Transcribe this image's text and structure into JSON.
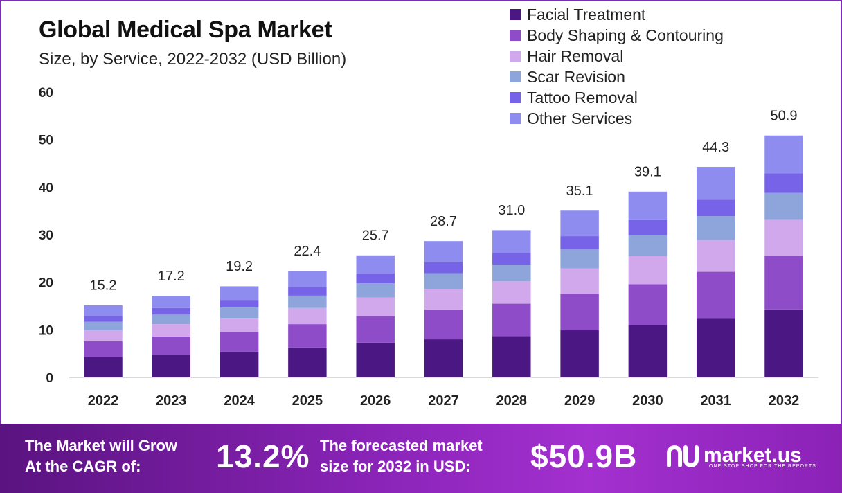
{
  "title": "Global Medical Spa Market",
  "subtitle": "Size, by Service, 2022-2032 (USD Billion)",
  "chart_data": {
    "type": "bar",
    "stacked": true,
    "categories": [
      "2022",
      "2023",
      "2024",
      "2025",
      "2026",
      "2027",
      "2028",
      "2029",
      "2030",
      "2031",
      "2032"
    ],
    "totals": [
      "15.2",
      "17.2",
      "19.2",
      "22.4",
      "25.7",
      "28.7",
      "31.0",
      "35.1",
      "39.1",
      "44.3",
      "50.9"
    ],
    "series": [
      {
        "name": "Facial Treatment",
        "color": "#4b1782",
        "values": [
          4.3,
          4.8,
          5.4,
          6.3,
          7.3,
          8.0,
          8.7,
          9.9,
          11.0,
          12.5,
          14.3
        ]
      },
      {
        "name": "Body Shaping & Contouring",
        "color": "#8e4cc8",
        "values": [
          3.3,
          3.8,
          4.2,
          4.9,
          5.6,
          6.3,
          6.8,
          7.7,
          8.6,
          9.7,
          11.2
        ]
      },
      {
        "name": "Hair Removal",
        "color": "#d2a8ec",
        "values": [
          2.3,
          2.6,
          2.9,
          3.4,
          3.9,
          4.3,
          4.7,
          5.3,
          5.9,
          6.7,
          7.6
        ]
      },
      {
        "name": "Scar Revision",
        "color": "#8ea5db",
        "values": [
          1.8,
          2.0,
          2.2,
          2.6,
          3.0,
          3.3,
          3.5,
          4.0,
          4.4,
          5.0,
          5.7
        ]
      },
      {
        "name": "Tattoo Removal",
        "color": "#7663e7",
        "values": [
          1.2,
          1.4,
          1.6,
          1.8,
          2.1,
          2.3,
          2.5,
          2.8,
          3.2,
          3.5,
          4.1
        ]
      },
      {
        "name": "Other Services",
        "color": "#8f8cf0",
        "values": [
          2.3,
          2.6,
          2.9,
          3.4,
          3.8,
          4.5,
          4.8,
          5.4,
          6.0,
          6.9,
          8.0
        ]
      }
    ],
    "ylim": [
      0,
      60
    ],
    "yticks": [
      "0",
      "10",
      "20",
      "30",
      "40",
      "50",
      "60"
    ],
    "xlabel": "",
    "ylabel": "",
    "legend_position": "top-right",
    "grid": false
  },
  "banner": {
    "cagr_line1": "The Market will Grow",
    "cagr_line2": "At the CAGR of:",
    "cagr_value": "13.2%",
    "forecast_line1": "The forecasted market",
    "forecast_line2": "size for 2032 in USD:",
    "forecast_value": "$50.9B",
    "logo_name": "market.us",
    "logo_tagline": "ONE STOP SHOP FOR THE REPORTS"
  }
}
